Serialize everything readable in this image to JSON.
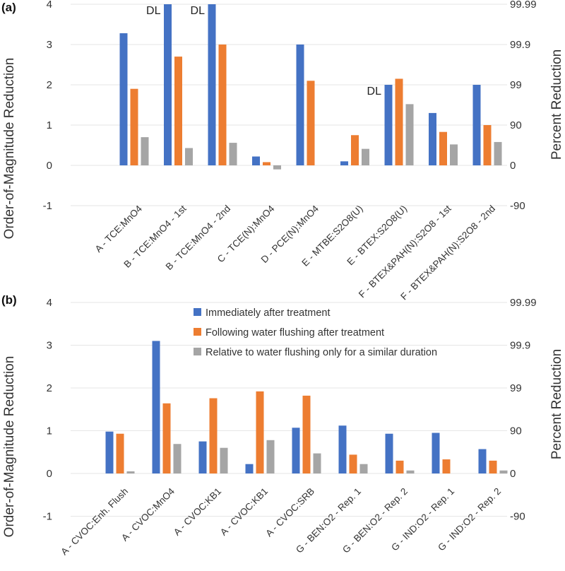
{
  "panels": [
    {
      "label": "(a)",
      "ylabel_left": "Order-of-Magnitude Reduction",
      "ylabel_right": "Percent Reduction",
      "yticks_left": [
        "4",
        "3",
        "2",
        "1",
        "0",
        "-1"
      ],
      "yticks_right": [
        "99.99",
        "99.9",
        "99",
        "90",
        "0",
        "-90"
      ],
      "annotations": [
        {
          "text": "DL",
          "category_index": 1,
          "series_index": 0
        },
        {
          "text": "DL",
          "category_index": 2,
          "series_index": 0
        },
        {
          "text": "DL",
          "category_index": 6,
          "series_index": 0
        }
      ]
    },
    {
      "label": "(b)",
      "ylabel_left": "Order-of-Magnitude Reduction",
      "ylabel_right": "Percent Reduction",
      "yticks_left": [
        "4",
        "3",
        "2",
        "1",
        "0",
        "-1"
      ],
      "yticks_right": [
        "99.99",
        "99.9",
        "99",
        "90",
        "0",
        "-90"
      ],
      "annotations": []
    }
  ],
  "chart_data": [
    {
      "type": "bar",
      "title": "(a)",
      "xlabel": "",
      "ylabel": "Order-of-Magnitude Reduction",
      "y2label": "Percent Reduction",
      "ylim": [
        -1,
        4
      ],
      "categories": [
        "A - TCE:MnO4",
        "B - TCE:MnO4 - 1st",
        "B - TCE:MnO4 - 2nd",
        "C - TCE(N):MnO4",
        "D - PCE(N):MnO4",
        "E - MTBE:S2O8(U)",
        "E - BTEX:S2O8(U)",
        "F - BTEX&PAH(N):S2O8 - 1st",
        "F - BTEX&PAH(N):S2O8 - 2nd"
      ],
      "series": [
        {
          "name": "Immediately after treatment",
          "color": "#4472c4",
          "values": [
            3.28,
            4.0,
            4.0,
            0.22,
            3.0,
            0.1,
            2.0,
            1.3,
            2.0
          ]
        },
        {
          "name": "Following water flushing after treatment",
          "color": "#ed7d31",
          "values": [
            1.9,
            2.7,
            3.0,
            0.08,
            2.1,
            0.75,
            2.15,
            0.83,
            1.0
          ]
        },
        {
          "name": "Relative to water flushing only for a similar duration",
          "color": "#a5a5a5",
          "values": [
            0.7,
            0.43,
            0.56,
            -0.1,
            null,
            0.41,
            1.52,
            0.52,
            0.58
          ]
        }
      ]
    },
    {
      "type": "bar",
      "title": "(b)",
      "xlabel": "",
      "ylabel": "Order-of-Magnitude Reduction",
      "y2label": "Percent Reduction",
      "ylim": [
        -1,
        4
      ],
      "legend": "top-center",
      "categories": [
        "A - CVOC:Enh. Flush",
        "A - CVOC:MnO4",
        "A - CVOC:KB1",
        "A - CVOC:KB1",
        "A - CVOC:SRB",
        "G - BEN:O2 - Rep. 1",
        "G - BEN:O2 - Rep. 2",
        "G - IND:O2 - Rep. 1",
        "G - IND:O2 - Rep. 2"
      ],
      "series": [
        {
          "name": "Immediately after treatment",
          "color": "#4472c4",
          "values": [
            0.98,
            3.1,
            0.75,
            0.22,
            1.07,
            1.12,
            0.93,
            0.95,
            0.57
          ]
        },
        {
          "name": "Following water flushing after treatment",
          "color": "#ed7d31",
          "values": [
            0.93,
            1.64,
            1.76,
            1.92,
            1.82,
            0.44,
            0.3,
            0.33,
            0.3
          ]
        },
        {
          "name": "Relative to water flushing only for a similar duration",
          "color": "#a5a5a5",
          "values": [
            0.05,
            0.69,
            0.6,
            0.78,
            0.47,
            0.22,
            0.07,
            null,
            0.07
          ]
        }
      ]
    }
  ]
}
